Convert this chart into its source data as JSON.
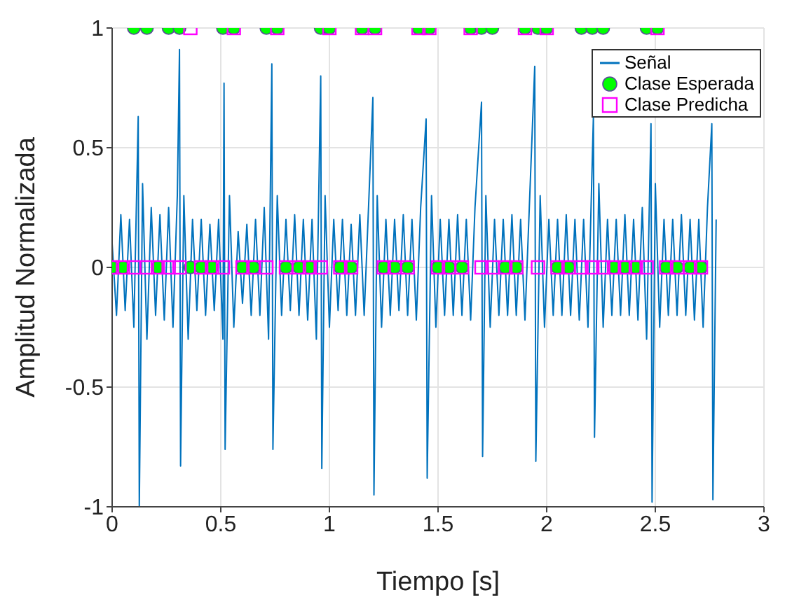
{
  "chart_data": {
    "type": "line",
    "xlabel": "Tiempo [s]",
    "ylabel": "Amplitud Normalizada",
    "xlim": [
      0,
      3
    ],
    "ylim": [
      -1,
      1
    ],
    "xticks": [
      0,
      0.5,
      1,
      1.5,
      2,
      2.5,
      3
    ],
    "yticks": [
      -1,
      -0.5,
      0,
      0.5,
      1
    ],
    "grid": true,
    "legend": "top right",
    "x": [
      0,
      0.05,
      0.1,
      0.16,
      0.21,
      0.26,
      0.31,
      0.36,
      0.41,
      0.46,
      0.51,
      0.56,
      0.6,
      0.65,
      0.71,
      0.76,
      0.8,
      0.86,
      0.91,
      0.96,
      1.0,
      1.05,
      1.1,
      1.15,
      1.21,
      1.25,
      1.3,
      1.36,
      1.41,
      1.46,
      1.5,
      1.55,
      1.61,
      1.65,
      1.7,
      1.75,
      1.81,
      1.86,
      1.9,
      1.96,
      2.0,
      2.05,
      2.1,
      2.16,
      2.21,
      2.26,
      2.31,
      2.36,
      2.41,
      2.46,
      2.51,
      2.55,
      2.6,
      2.66,
      2.71
    ],
    "series": [
      {
        "name": "Señal",
        "color": "#0072bd",
        "marker": "none",
        "line_style": "solid",
        "x": [
          0,
          0.02,
          0.04,
          0.06,
          0.08,
          0.1,
          0.12,
          0.125,
          0.14,
          0.16,
          0.18,
          0.2,
          0.22,
          0.24,
          0.26,
          0.28,
          0.3,
          0.31,
          0.315,
          0.33,
          0.35,
          0.37,
          0.39,
          0.41,
          0.43,
          0.45,
          0.47,
          0.49,
          0.51,
          0.515,
          0.52,
          0.54,
          0.56,
          0.58,
          0.6,
          0.62,
          0.64,
          0.66,
          0.68,
          0.7,
          0.72,
          0.735,
          0.74,
          0.76,
          0.78,
          0.8,
          0.82,
          0.84,
          0.86,
          0.88,
          0.9,
          0.92,
          0.94,
          0.96,
          0.965,
          0.98,
          1.0,
          1.02,
          1.04,
          1.06,
          1.08,
          1.1,
          1.12,
          1.14,
          1.16,
          1.18,
          1.2,
          1.205,
          1.22,
          1.24,
          1.26,
          1.28,
          1.3,
          1.32,
          1.34,
          1.36,
          1.38,
          1.4,
          1.42,
          1.445,
          1.45,
          1.47,
          1.49,
          1.51,
          1.53,
          1.55,
          1.57,
          1.59,
          1.61,
          1.63,
          1.65,
          1.67,
          1.7,
          1.705,
          1.72,
          1.74,
          1.76,
          1.78,
          1.8,
          1.82,
          1.84,
          1.86,
          1.88,
          1.9,
          1.92,
          1.945,
          1.95,
          1.97,
          1.99,
          2.01,
          2.03,
          2.05,
          2.07,
          2.09,
          2.11,
          2.13,
          2.15,
          2.17,
          2.19,
          2.215,
          2.22,
          2.24,
          2.26,
          2.28,
          2.3,
          2.32,
          2.34,
          2.36,
          2.38,
          2.4,
          2.42,
          2.44,
          2.46,
          2.48,
          2.485,
          2.5,
          2.52,
          2.54,
          2.56,
          2.58,
          2.6,
          2.62,
          2.64,
          2.66,
          2.68,
          2.7,
          2.72,
          2.74,
          2.76,
          2.765,
          2.78
        ],
        "values": [
          0.1,
          -0.2,
          0.22,
          -0.18,
          0.2,
          -0.25,
          0.63,
          -1,
          0.35,
          -0.3,
          0.25,
          -0.2,
          0.22,
          -0.22,
          0.25,
          -0.25,
          0.3,
          0.91,
          -0.83,
          0.3,
          -0.3,
          0.2,
          -0.18,
          0.2,
          -0.2,
          0.18,
          -0.18,
          0.2,
          -0.3,
          0.77,
          -0.76,
          0.3,
          -0.25,
          0.15,
          -0.15,
          0.18,
          -0.2,
          0.2,
          -0.2,
          0.25,
          -0.3,
          0.85,
          -0.76,
          0.3,
          -0.2,
          0.2,
          -0.18,
          0.22,
          -0.2,
          0.2,
          -0.22,
          0.2,
          -0.3,
          0.8,
          -0.84,
          0.3,
          -0.25,
          0.2,
          -0.18,
          0.2,
          -0.2,
          0.18,
          -0.2,
          0.22,
          -0.2,
          0.25,
          0.71,
          -0.95,
          0.3,
          -0.25,
          0.2,
          -0.2,
          0.2,
          -0.18,
          0.22,
          -0.2,
          0.2,
          -0.22,
          0.25,
          0.62,
          -0.88,
          0.3,
          -0.25,
          0.2,
          -0.2,
          0.2,
          -0.2,
          0.22,
          -0.2,
          0.2,
          -0.22,
          0.25,
          0.69,
          -0.79,
          0.3,
          -0.25,
          0.2,
          -0.2,
          0.2,
          -0.2,
          0.22,
          -0.2,
          0.2,
          -0.22,
          0.25,
          0.84,
          -0.81,
          0.3,
          -0.25,
          0.2,
          -0.2,
          0.2,
          -0.2,
          0.22,
          -0.2,
          0.2,
          -0.22,
          0.2,
          -0.25,
          0.63,
          -0.71,
          0.35,
          -0.25,
          0.2,
          -0.2,
          0.2,
          -0.2,
          0.22,
          -0.2,
          0.2,
          -0.22,
          0.25,
          -0.3,
          0.6,
          -0.98,
          0.35,
          -0.25,
          0.2,
          -0.2,
          0.2,
          -0.2,
          0.22,
          -0.2,
          0.2,
          -0.22,
          0.2,
          -0.25,
          0.25,
          0.6,
          -0.97,
          0.2
        ]
      },
      {
        "name": "Clase Esperada",
        "type": "scatter",
        "color": "#00ff00",
        "marker": "circle",
        "values": [
          0,
          0,
          1,
          1,
          0,
          1,
          1,
          0,
          0,
          0,
          1,
          1,
          0,
          0,
          1,
          1,
          0,
          0,
          0,
          1,
          1,
          0,
          0,
          1,
          1,
          0,
          0,
          0,
          1,
          1,
          0,
          0,
          0,
          1,
          1,
          1,
          0,
          0,
          1,
          1,
          1,
          0,
          0,
          1,
          1,
          1,
          0,
          0,
          0,
          1,
          1,
          0,
          0,
          0,
          0
        ]
      },
      {
        "name": "Clase Predicha",
        "type": "scatter",
        "color": "#ff00ff",
        "marker": "square",
        "values": [
          0,
          0,
          0,
          0,
          0,
          0,
          0,
          1,
          0,
          0,
          0,
          1,
          0,
          0,
          0,
          1,
          0,
          0,
          0,
          0,
          1,
          0,
          0,
          1,
          1,
          0,
          0,
          0,
          1,
          1,
          0,
          0,
          0,
          1,
          0,
          0,
          0,
          0,
          1,
          0,
          1,
          0,
          0,
          0,
          0,
          0,
          0,
          0,
          0,
          0,
          1,
          0,
          0,
          0,
          0
        ]
      }
    ]
  }
}
